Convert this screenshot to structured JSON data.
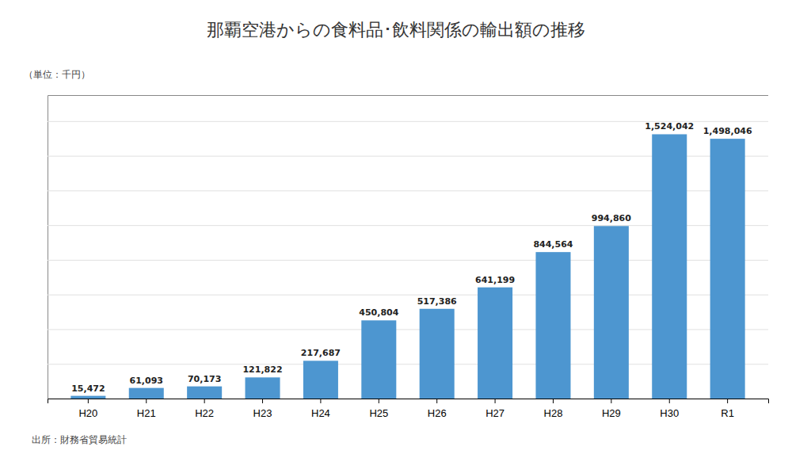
{
  "chart_data": {
    "type": "bar",
    "title": "那覇空港からの食料品･飲料関係の輸出額の推移",
    "ylabel": "（単位：千円）",
    "annotations": [
      "出所：財務省貿易統計"
    ],
    "categories": [
      "H20",
      "H21",
      "H22",
      "H23",
      "H24",
      "H25",
      "H26",
      "H27",
      "H28",
      "H29",
      "H30",
      "R1"
    ],
    "values": [
      15472,
      61093,
      70173,
      121822,
      217687,
      450804,
      517386,
      641199,
      844564,
      994860,
      1524042,
      1498046
    ],
    "value_labels": [
      "15,472",
      "61,093",
      "70,173",
      "121,822",
      "217,687",
      "450,804",
      "517,386",
      "641,199",
      "844,564",
      "994,860",
      "1,524,042",
      "1,498,046"
    ],
    "color": "#4d96d0",
    "ylim": [
      0,
      1750000
    ],
    "yticks": [
      0,
      200000,
      400000,
      600000,
      800000,
      1000000,
      1200000,
      1400000,
      1600000
    ],
    "grid": true,
    "data_labels": true,
    "tick_labels": "x"
  }
}
